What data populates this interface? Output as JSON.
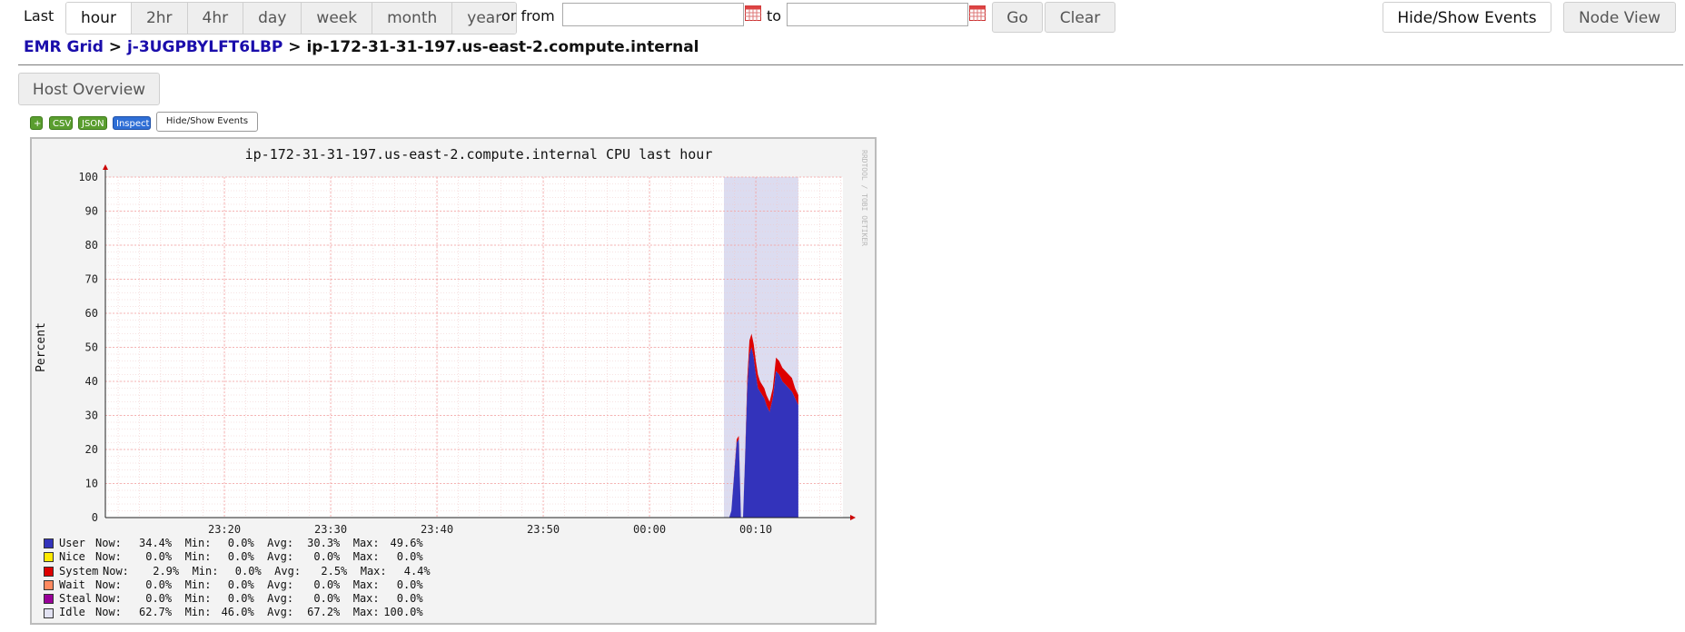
{
  "toolbar": {
    "last_label": "Last",
    "ranges": [
      "hour",
      "2hr",
      "4hr",
      "day",
      "week",
      "month",
      "year"
    ],
    "active_range": "hour",
    "or_from_label": "or from",
    "to_label": "to",
    "from_value": "",
    "to_value": "",
    "go_label": "Go",
    "clear_label": "Clear",
    "hide_show_events_label": "Hide/Show Events",
    "node_view_label": "Node View"
  },
  "breadcrumb": {
    "grid": "EMR Grid",
    "cluster": "j-3UGPBYLFT6LBP",
    "host": "ip-172-31-31-197.us-east-2.compute.internal",
    "separator": ">"
  },
  "host_overview_label": "Host Overview",
  "graph_buttons": {
    "plus": "+",
    "csv": "CSV",
    "json": "JSON",
    "inspect": "Inspect",
    "hide_show_events": "Hide/Show Events"
  },
  "watermark": "RRDTOOL / TOBI OETIKER",
  "colors": {
    "user": "#3333bb",
    "nice": "#ffea00",
    "system": "#dd0000",
    "wait": "#ff8a60",
    "steal": "#990099",
    "idle": "#e2e2f2",
    "event_band": "#dcdcf0",
    "link": "#1a0dab"
  },
  "chart_data": {
    "type": "area",
    "title": "ip-172-31-31-197.us-east-2.compute.internal CPU last hour",
    "ylabel": "Percent",
    "ylim": [
      0,
      100
    ],
    "yticks": [
      0,
      10,
      20,
      30,
      40,
      50,
      60,
      70,
      80,
      90,
      100
    ],
    "xticks": [
      "23:20",
      "23:30",
      "23:40",
      "23:50",
      "00:00",
      "00:10"
    ],
    "x_minutes_range": [
      -11.2,
      58.2
    ],
    "xtick_minutes": [
      0,
      10,
      20,
      30,
      40,
      50
    ],
    "event_band_minutes": [
      47,
      54
    ],
    "stacked_series": [
      {
        "name": "User",
        "x": [
          47.5,
          47.7,
          48.2,
          48.4,
          48.6,
          48.8,
          49.0,
          49.2,
          49.4,
          49.6,
          49.8,
          50.0,
          50.2,
          50.4,
          50.6,
          50.8,
          51.0,
          51.3,
          51.6,
          51.9,
          52.2,
          52.5,
          52.8,
          53.1,
          53.4,
          53.7,
          54.0
        ],
        "values": [
          0,
          2,
          22,
          23,
          0,
          0,
          18,
          38,
          48,
          50,
          47,
          42,
          38,
          37,
          36,
          35,
          33,
          31,
          35,
          43,
          42,
          40,
          39,
          38,
          37,
          35,
          33
        ]
      },
      {
        "name": "System",
        "x": [
          47.5,
          47.7,
          48.2,
          48.4,
          48.6,
          48.8,
          49.0,
          49.2,
          49.4,
          49.6,
          49.8,
          50.0,
          50.2,
          50.4,
          50.6,
          50.8,
          51.0,
          51.3,
          51.6,
          51.9,
          52.2,
          52.5,
          52.8,
          53.1,
          53.4,
          53.7,
          54.0
        ],
        "values": [
          0,
          0,
          1,
          1,
          0,
          0,
          1,
          3,
          4,
          4,
          4,
          4,
          4,
          3,
          3,
          3,
          3,
          3,
          3,
          4,
          4,
          4,
          4,
          4,
          4,
          3,
          3
        ]
      }
    ],
    "legend": [
      {
        "key": "user",
        "name": "User",
        "now": "34.4%",
        "min": "0.0%",
        "avg": "30.3%",
        "max": "49.6%"
      },
      {
        "key": "nice",
        "name": "Nice",
        "now": "0.0%",
        "min": "0.0%",
        "avg": "0.0%",
        "max": "0.0%"
      },
      {
        "key": "system",
        "name": "System",
        "now": "2.9%",
        "min": "0.0%",
        "avg": "2.5%",
        "max": "4.4%"
      },
      {
        "key": "wait",
        "name": "Wait",
        "now": "0.0%",
        "min": "0.0%",
        "avg": "0.0%",
        "max": "0.0%"
      },
      {
        "key": "steal",
        "name": "Steal",
        "now": "0.0%",
        "min": "0.0%",
        "avg": "0.0%",
        "max": "0.0%"
      },
      {
        "key": "idle",
        "name": "Idle",
        "now": "62.7%",
        "min": "46.0%",
        "avg": "67.2%",
        "max": "100.0%"
      }
    ]
  }
}
